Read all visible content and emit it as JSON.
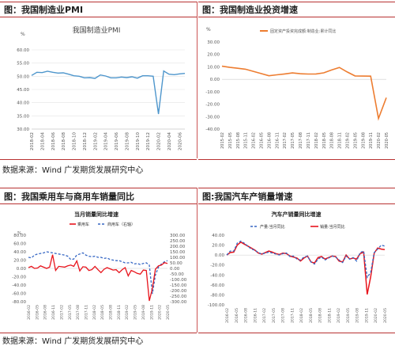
{
  "sources": [
    "数据来源：Wind 广发期货发展研究中心",
    "数据来源：Wind 广发期货发展研究中心"
  ],
  "colors": {
    "rule": "#b83232",
    "pmi": "#4e96cc",
    "fai": "#ed7d31",
    "red": "#e8141c",
    "blue": "#3667c4"
  },
  "chart_data": [
    {
      "id": "pmi",
      "panel_title": "图：我国制造业PMI",
      "type": "line",
      "title": "我国制造业PMI",
      "unit": "%",
      "ylim": [
        30,
        60
      ],
      "yticks": [
        "60.00",
        "55.00",
        "50.00",
        "45.00",
        "40.00",
        "35.00",
        "30.00"
      ],
      "xticks": [
        "2018-02",
        "2018-03",
        "2018-04",
        "2018-05",
        "2018-06",
        "2018-07",
        "2018-08",
        "2018-09",
        "2018-10",
        "2018-11",
        "2018-12",
        "2019-01",
        "2019-02",
        "2019-03",
        "2019-04",
        "2019-05",
        "2019-06",
        "2019-07",
        "2019-08",
        "2019-09",
        "2019-10",
        "2019-11",
        "2019-12",
        "2020-01",
        "2020-02",
        "2020-03",
        "2020-04",
        "2020-05",
        "2020-06",
        "2020-07"
      ],
      "tick_labels_shown": [
        "2018-02",
        "2018-04",
        "2018-06",
        "2018-08",
        "2018-10",
        "2018-12",
        "2019-02",
        "2019-04",
        "2019-06",
        "2019-08",
        "2019-10",
        "2019-12",
        "2020-02",
        "2020-04",
        "2020-06"
      ],
      "series": [
        {
          "name": "",
          "values": [
            50.3,
            51.5,
            51.4,
            51.9,
            51.5,
            51.2,
            51.3,
            50.8,
            50.2,
            50.0,
            49.4,
            49.5,
            49.2,
            50.5,
            50.1,
            49.4,
            49.4,
            49.7,
            49.5,
            49.8,
            49.3,
            50.2,
            50.2,
            50.0,
            35.7,
            52.0,
            50.8,
            50.6,
            50.9,
            51.1
          ]
        }
      ]
    },
    {
      "id": "fai",
      "panel_title": "图：我国制造业投资增速",
      "type": "line",
      "unit": "%",
      "ylim": [
        -40,
        30
      ],
      "yticks": [
        "30.00",
        "20.00",
        "10.00",
        "0.00",
        "-10.00",
        "-20.00",
        "-30.00",
        "-40.00"
      ],
      "xticks": [
        "2015-02",
        "2015-05",
        "2015-08",
        "2015-11",
        "2016-02",
        "2016-05",
        "2016-08",
        "2016-11",
        "2017-02",
        "2017-05",
        "2017-08",
        "2017-11",
        "2018-02",
        "2018-05",
        "2018-08",
        "2018-11",
        "2019-02",
        "2019-05",
        "2019-08",
        "2019-11",
        "2020-02",
        "2020-05"
      ],
      "series": [
        {
          "name": "固定资产投资完成额:制造业:累计同比",
          "values": [
            10.5,
            9.6,
            8.9,
            8.1,
            6.4,
            4.6,
            2.8,
            3.6,
            4.3,
            5.1,
            4.5,
            4.2,
            4.3,
            5.2,
            7.5,
            9.5,
            5.9,
            2.7,
            2.6,
            2.5,
            -31.5,
            -14.8
          ]
        }
      ]
    },
    {
      "id": "cars",
      "panel_title": "图：我国乘用车与商用车销量同比",
      "type": "line",
      "title": "当月销量同比增速",
      "unit": "%",
      "ylim": [
        -80,
        80
      ],
      "yticks": [
        "80.00",
        "60.00",
        "40.00",
        "20.00",
        "0.00",
        "-20.00",
        "-40.00",
        "-60.00",
        "-80.00"
      ],
      "y2lim": [
        -300,
        300
      ],
      "y2ticks": [
        "300.00",
        "250.00",
        "200.00",
        "150.00",
        "100.00",
        "50.00",
        "0.00",
        "-50.00",
        "-100.00",
        "-150.00",
        "-200.00",
        "-250.00",
        "-300.00"
      ],
      "xticks": [
        "2016-02",
        "2016-05",
        "2016-08",
        "2016-11",
        "2017-02",
        "2017-05",
        "2017-08",
        "2017-11",
        "2018-02",
        "2018-05",
        "2018-08",
        "2018-11",
        "2019-02",
        "2019-05",
        "2019-08",
        "2019-11",
        "2020-02",
        "2020-05"
      ],
      "series": [
        {
          "name": "乘用车",
          "values": [
            2,
            5,
            0,
            1,
            6,
            3,
            0,
            3,
            33,
            -5,
            5,
            4,
            3,
            6,
            8,
            5,
            18,
            -6,
            4,
            3,
            -5,
            -3,
            5,
            -3,
            -10,
            -2,
            2,
            -1,
            -4,
            -3,
            -10,
            -3,
            2,
            -18,
            -5,
            -8,
            -12,
            -14,
            -4,
            -5,
            -78,
            -48,
            -2,
            6,
            8,
            14,
            12
          ]
        },
        {
          "name": "商用车（右轴）",
          "values": [
            100,
            95,
            120,
            130,
            135,
            140,
            150,
            145,
            140,
            135,
            130,
            125,
            120,
            110,
            80,
            85,
            120,
            130,
            140,
            120,
            110,
            105,
            110,
            100,
            100,
            90,
            95,
            80,
            75,
            70,
            70,
            60,
            50,
            50,
            55,
            40,
            45,
            35,
            45,
            50,
            30,
            -230,
            -60,
            10,
            40,
            60,
            70
          ]
        }
      ]
    },
    {
      "id": "autos",
      "panel_title": "图:我国汽车产销量增速",
      "type": "line",
      "title": "汽车产销量同比增速",
      "ylim": [
        -100,
        40
      ],
      "yticks": [
        "40.00",
        "20.00",
        "0.00",
        "-20.00",
        "-40.00",
        "-60.00",
        "-80.00",
        "-100.00"
      ],
      "xticks": [
        "2016-02",
        "2016-05",
        "2016-08",
        "2016-11",
        "2017-02",
        "2017-05",
        "2017-08",
        "2017-11",
        "2018-02",
        "2018-05",
        "2018-08",
        "2018-11",
        "2019-02",
        "2019-05",
        "2019-08",
        "2019-11",
        "2020-02",
        "2020-05"
      ],
      "series": [
        {
          "name": "产量:当月同比",
          "values": [
            0,
            8,
            8,
            24,
            28,
            24,
            18,
            12,
            10,
            5,
            2,
            4,
            6,
            4,
            2,
            0,
            3,
            4,
            -3,
            -2,
            -8,
            -10,
            -4,
            -2,
            -14,
            -18,
            -8,
            -4,
            -10,
            -6,
            -2,
            -4,
            -10,
            -15,
            -2,
            -8,
            -5,
            -12,
            5,
            8,
            -45,
            -35,
            5,
            12,
            20,
            18
          ]
        },
        {
          "name": "销量:当月同比",
          "values": [
            0,
            5,
            6,
            20,
            26,
            22,
            18,
            14,
            10,
            4,
            2,
            5,
            8,
            6,
            3,
            1,
            4,
            3,
            -2,
            -4,
            -6,
            -12,
            -6,
            -2,
            -14,
            -16,
            -5,
            -3,
            -8,
            -5,
            -2,
            -3,
            -12,
            -14,
            0,
            -8,
            -6,
            -8,
            3,
            6,
            -79,
            -44,
            4,
            14,
            12,
            11
          ]
        }
      ]
    }
  ]
}
